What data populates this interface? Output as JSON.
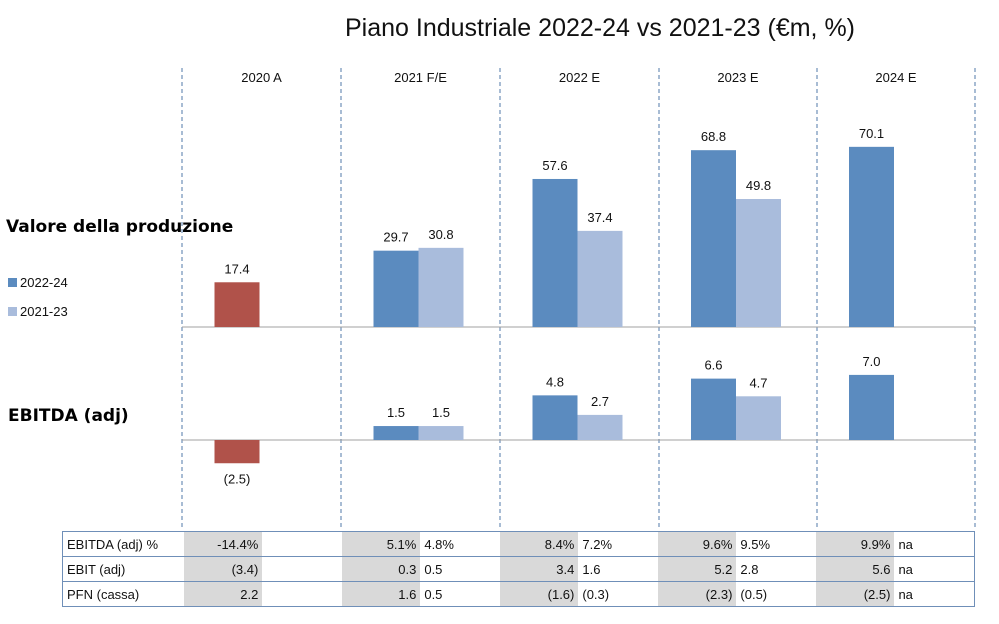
{
  "title": "Piano Industriale 2022-24 vs 2021-23 (€m, %)",
  "colors": {
    "plan_2022_24": "#5b8bbf",
    "plan_2021_23": "#a9bcdc",
    "actual_2020": "#b0524a"
  },
  "chart_data": [
    {
      "type": "bar",
      "title": "Valore della produzione",
      "categories": [
        "2020 A",
        "2021 F/E",
        "2022 E",
        "2023 E",
        "2024 E"
      ],
      "series": [
        {
          "name": "2022-24",
          "values": [
            17.4,
            29.7,
            57.6,
            68.8,
            70.1
          ]
        },
        {
          "name": "2021-23",
          "values": [
            null,
            30.8,
            37.4,
            49.8,
            null
          ]
        }
      ],
      "labels": [
        [
          "17.4",
          "29.7",
          "57.6",
          "68.8",
          "70.1"
        ],
        [
          null,
          "30.8",
          "37.4",
          "49.8",
          null
        ]
      ]
    },
    {
      "type": "bar",
      "title": "EBITDA (adj)",
      "categories": [
        "2020 A",
        "2021 F/E",
        "2022 E",
        "2023 E",
        "2024 E"
      ],
      "series": [
        {
          "name": "2022-24",
          "values": [
            -2.5,
            1.5,
            4.8,
            6.6,
            7.0
          ]
        },
        {
          "name": "2021-23",
          "values": [
            null,
            1.5,
            2.7,
            4.7,
            null
          ]
        }
      ],
      "labels": [
        [
          "(2.5)",
          "1.5",
          "4.8",
          "6.6",
          "7.0"
        ],
        [
          null,
          "1.5",
          "2.7",
          "4.7",
          null
        ]
      ]
    }
  ],
  "legend": [
    "2022-24",
    "2021-23"
  ],
  "side_labels": {
    "top": "Valore della produzione",
    "bottom": "EBITDA (adj)"
  },
  "table": {
    "rows": [
      {
        "label": "EBITDA (adj) %",
        "cells": [
          [
            "-14.4%",
            ""
          ],
          [
            "5.1%",
            "4.8%"
          ],
          [
            "8.4%",
            "7.2%"
          ],
          [
            "9.6%",
            "9.5%"
          ],
          [
            "9.9%",
            "na"
          ]
        ]
      },
      {
        "label": "EBIT (adj)",
        "cells": [
          [
            "(3.4)",
            ""
          ],
          [
            "0.3",
            "0.5"
          ],
          [
            "3.4",
            "1.6"
          ],
          [
            "5.2",
            "2.8"
          ],
          [
            "5.6",
            "na"
          ]
        ]
      },
      {
        "label": "PFN (cassa)",
        "cells": [
          [
            "2.2",
            ""
          ],
          [
            "1.6",
            "0.5"
          ],
          [
            "(1.6)",
            "(0.3)"
          ],
          [
            "(2.3)",
            "(0.5)"
          ],
          [
            "(2.5)",
            "na"
          ]
        ]
      }
    ]
  }
}
